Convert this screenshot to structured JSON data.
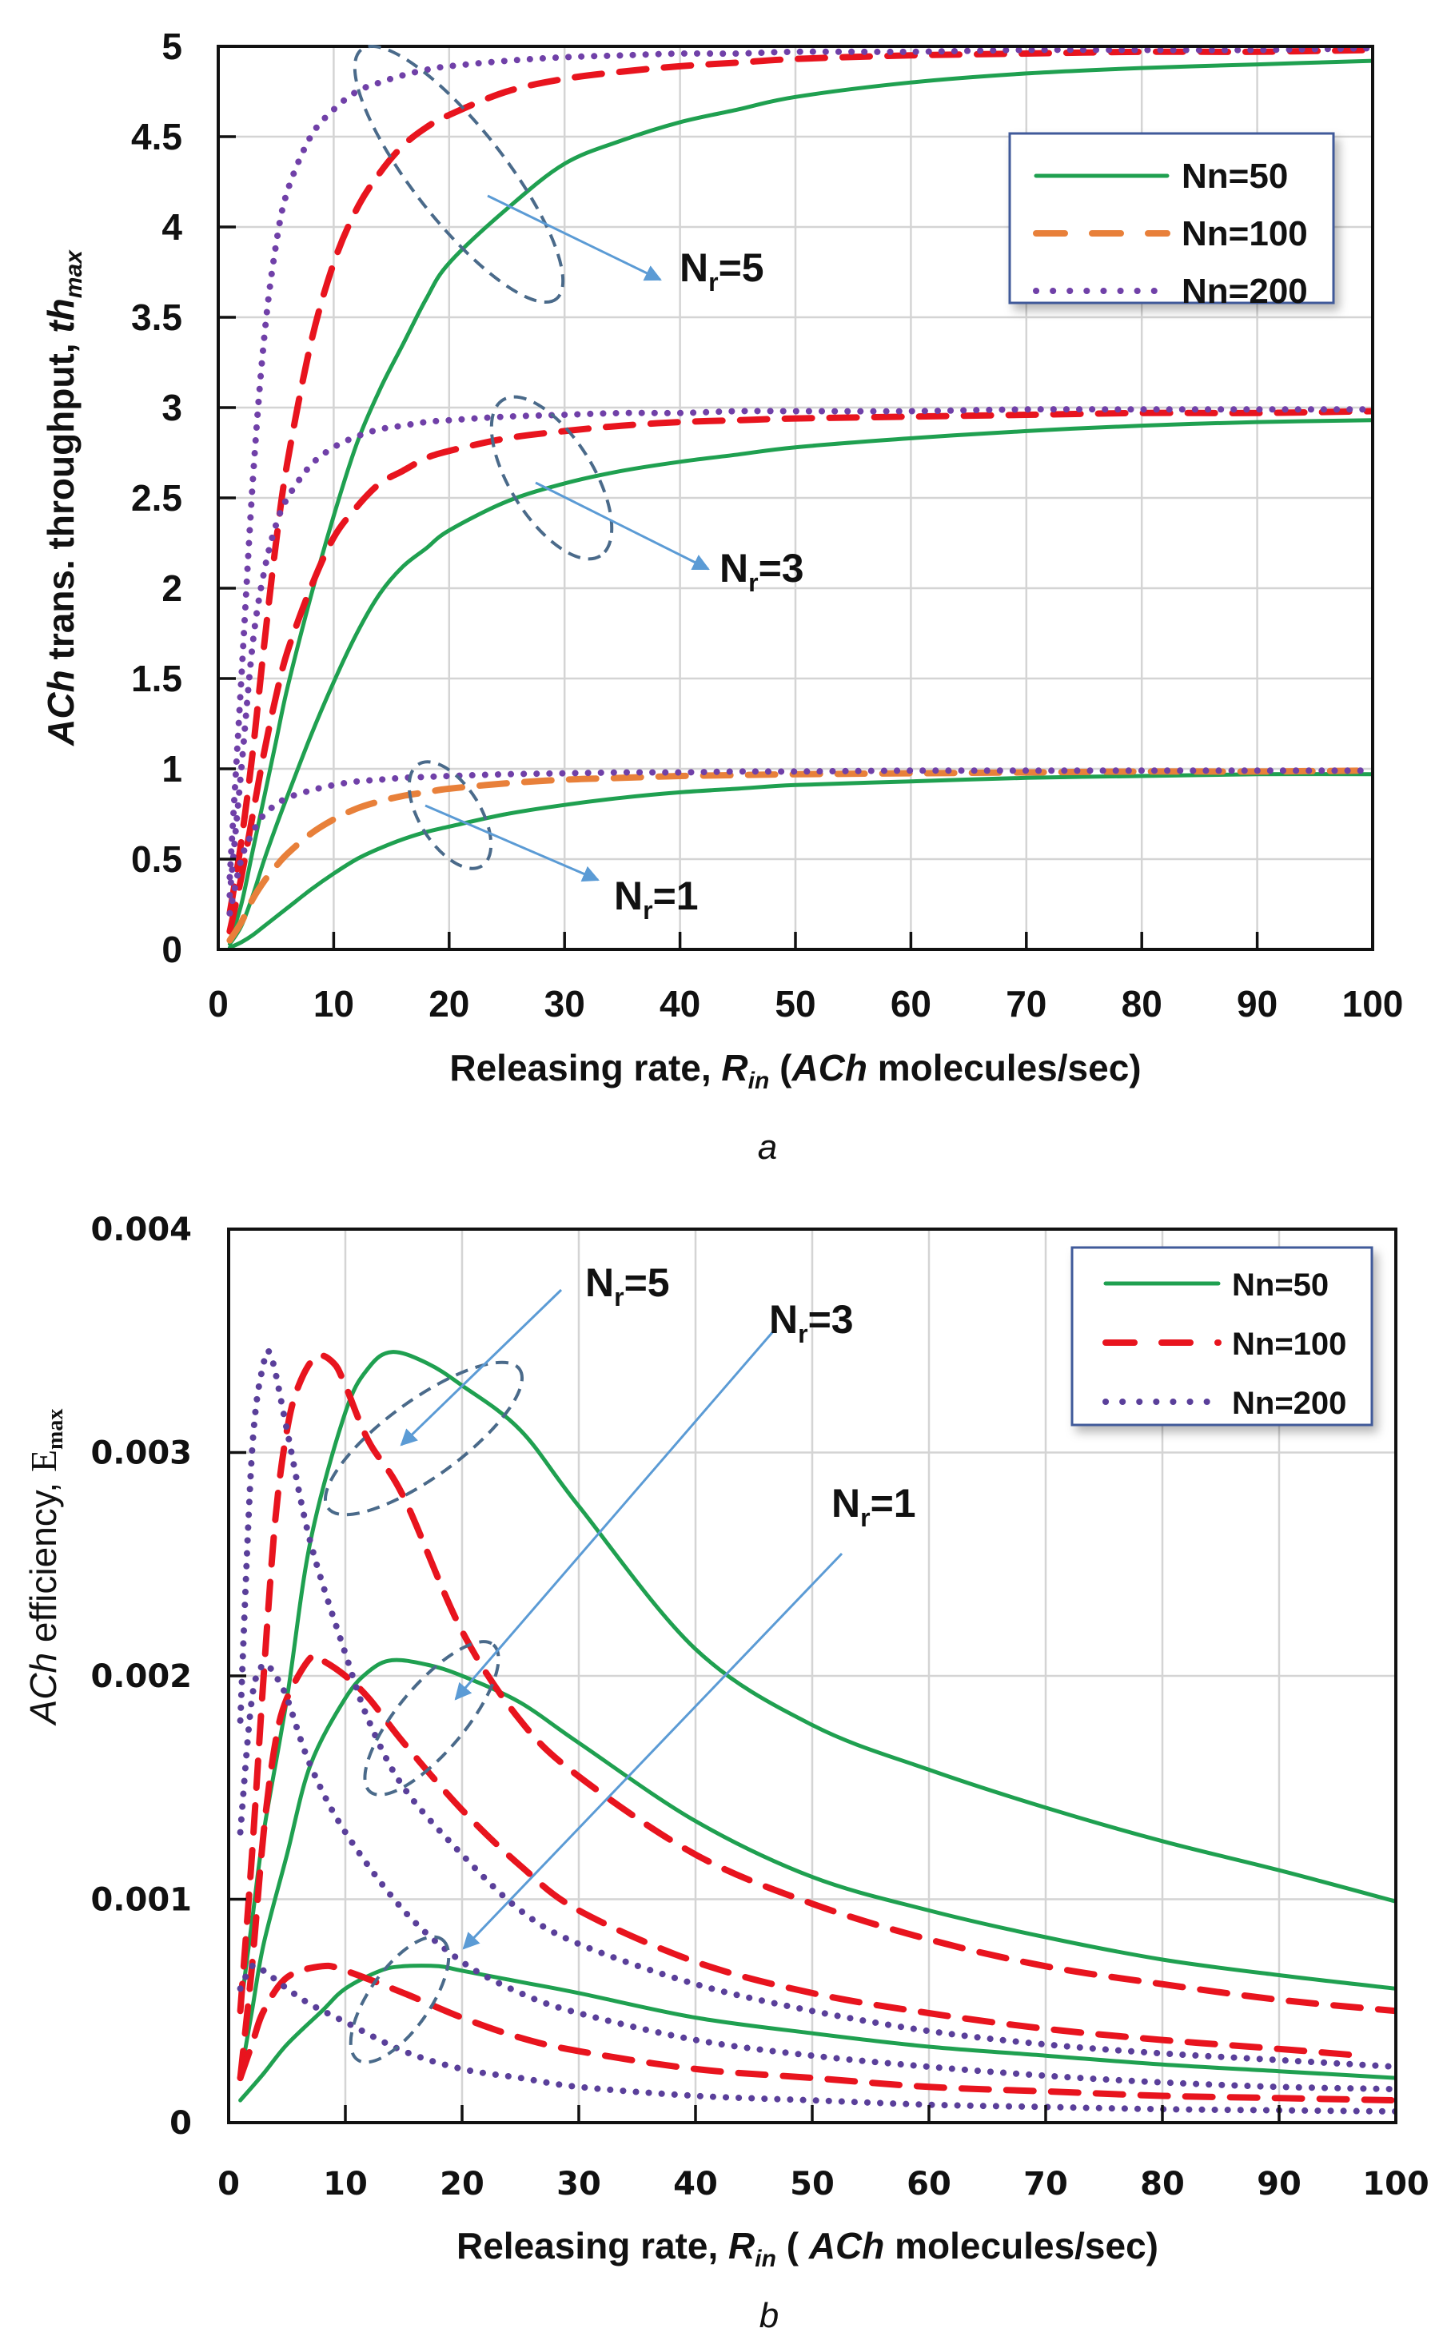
{
  "chart_data": [
    {
      "id": "a",
      "type": "line",
      "caption": "a",
      "title": "",
      "xlabel": {
        "main": "Releasing rate, ",
        "var": "R",
        "sub": "in",
        "rest_open": " (",
        "italic": "ACh",
        "rest": " molecules/sec)"
      },
      "ylabel": {
        "italic": "ACh",
        "main": " trans. throughput, ",
        "var": "th",
        "sub": "max"
      },
      "xlim": [
        0,
        100
      ],
      "ylim": [
        0,
        5
      ],
      "x_ticks": [
        0,
        10,
        20,
        30,
        40,
        50,
        60,
        70,
        80,
        90,
        100
      ],
      "x_tick_labels": [
        "0",
        "10",
        "20",
        "30",
        "40",
        "50",
        "60",
        "70",
        "80",
        "90",
        "100"
      ],
      "y_ticks": [
        0,
        0.5,
        1,
        1.5,
        2,
        2.5,
        3,
        3.5,
        4,
        4.5,
        5
      ],
      "y_tick_labels": [
        "0",
        "0.5",
        "1",
        "1.5",
        "2",
        "2.5",
        "3",
        "3.5",
        "4",
        "4.5",
        "5"
      ],
      "grid": true,
      "legend_position": "top-right",
      "legend": [
        {
          "label": "Nn=50",
          "style": "solid",
          "color": "#1fa050"
        },
        {
          "label": "Nn=100",
          "style": "dashed",
          "color": "#e8803a"
        },
        {
          "label": "Nn=200",
          "style": "dotted",
          "color": "#7040a8"
        }
      ],
      "x": [
        1,
        2,
        3,
        4,
        5,
        6,
        8,
        10,
        12,
        14,
        16,
        18,
        20,
        25,
        30,
        35,
        40,
        45,
        50,
        60,
        70,
        80,
        90,
        100
      ],
      "series": [
        {
          "name": "Nn=50, Nr=5",
          "nn": 50,
          "nr": 5,
          "style": "solid",
          "color": "#1fa050",
          "values": [
            0.05,
            0.25,
            0.55,
            0.85,
            1.15,
            1.45,
            1.95,
            2.4,
            2.8,
            3.1,
            3.35,
            3.6,
            3.8,
            4.1,
            4.35,
            4.48,
            4.58,
            4.65,
            4.72,
            4.8,
            4.85,
            4.88,
            4.9,
            4.92
          ]
        },
        {
          "name": "Nn=50, Nr=3",
          "nn": 50,
          "nr": 3,
          "style": "solid",
          "color": "#1fa050",
          "values": [
            0.03,
            0.13,
            0.3,
            0.5,
            0.68,
            0.85,
            1.18,
            1.48,
            1.75,
            1.97,
            2.12,
            2.22,
            2.32,
            2.48,
            2.58,
            2.65,
            2.7,
            2.74,
            2.78,
            2.83,
            2.87,
            2.9,
            2.92,
            2.93
          ]
        },
        {
          "name": "Nn=50, Nr=1",
          "nn": 50,
          "nr": 1,
          "style": "solid",
          "color": "#1fa050",
          "values": [
            0.01,
            0.04,
            0.08,
            0.13,
            0.18,
            0.23,
            0.33,
            0.42,
            0.5,
            0.56,
            0.61,
            0.65,
            0.68,
            0.75,
            0.8,
            0.84,
            0.87,
            0.89,
            0.91,
            0.93,
            0.95,
            0.96,
            0.97,
            0.97
          ]
        },
        {
          "name": "Nn=100, Nr=5",
          "nn": 100,
          "nr": 5,
          "style": "dashed",
          "color": "#e8141e",
          "values": [
            0.2,
            0.6,
            1.1,
            1.7,
            2.25,
            2.7,
            3.35,
            3.8,
            4.1,
            4.3,
            4.45,
            4.55,
            4.62,
            4.75,
            4.82,
            4.86,
            4.89,
            4.91,
            4.93,
            4.95,
            4.96,
            4.97,
            4.97,
            4.98
          ]
        },
        {
          "name": "Nn=100, Nr=3",
          "nn": 100,
          "nr": 3,
          "style": "dashed",
          "color": "#e8141e",
          "values": [
            0.1,
            0.4,
            0.75,
            1.1,
            1.4,
            1.65,
            2.0,
            2.28,
            2.45,
            2.58,
            2.65,
            2.72,
            2.76,
            2.83,
            2.87,
            2.9,
            2.92,
            2.93,
            2.94,
            2.95,
            2.96,
            2.97,
            2.97,
            2.98
          ]
        },
        {
          "name": "Nn=100, Nr=1",
          "nn": 100,
          "nr": 1,
          "style": "dashed",
          "color": "#e8803a",
          "values": [
            0.05,
            0.15,
            0.28,
            0.38,
            0.46,
            0.53,
            0.64,
            0.72,
            0.78,
            0.82,
            0.85,
            0.87,
            0.89,
            0.92,
            0.94,
            0.95,
            0.96,
            0.965,
            0.97,
            0.975,
            0.98,
            0.985,
            0.985,
            0.99
          ]
        },
        {
          "name": "Nn=200, Nr=5",
          "nn": 200,
          "nr": 5,
          "style": "dotted",
          "color": "#7040a8",
          "values": [
            0.4,
            1.5,
            2.6,
            3.4,
            3.9,
            4.2,
            4.5,
            4.65,
            4.75,
            4.8,
            4.84,
            4.87,
            4.89,
            4.92,
            4.94,
            4.95,
            4.96,
            4.96,
            4.97,
            4.97,
            4.98,
            4.98,
            4.98,
            4.99
          ]
        },
        {
          "name": "Nn=200, Nr=3",
          "nn": 200,
          "nr": 3,
          "style": "dotted",
          "color": "#7040a8",
          "values": [
            0.3,
            1.0,
            1.7,
            2.1,
            2.35,
            2.5,
            2.68,
            2.78,
            2.84,
            2.88,
            2.9,
            2.92,
            2.93,
            2.95,
            2.96,
            2.97,
            2.97,
            2.98,
            2.98,
            2.98,
            2.99,
            2.99,
            2.99,
            2.99
          ]
        },
        {
          "name": "Nn=200, Nr=1",
          "nn": 200,
          "nr": 1,
          "style": "dotted",
          "color": "#7040a8",
          "values": [
            0.2,
            0.5,
            0.65,
            0.75,
            0.8,
            0.84,
            0.88,
            0.91,
            0.93,
            0.94,
            0.95,
            0.955,
            0.96,
            0.97,
            0.975,
            0.98,
            0.98,
            0.985,
            0.985,
            0.99,
            0.99,
            0.99,
            0.99,
            0.99
          ]
        }
      ],
      "annotations": [
        {
          "label_main": "N",
          "label_sub": "r",
          "label_rest": "=5",
          "group": "Nr=5"
        },
        {
          "label_main": "N",
          "label_sub": "r",
          "label_rest": "=3",
          "group": "Nr=3"
        },
        {
          "label_main": "N",
          "label_sub": "r",
          "label_rest": "=1",
          "group": "Nr=1"
        }
      ]
    },
    {
      "id": "b",
      "type": "line",
      "caption": "b",
      "title": "",
      "xlabel": {
        "main": "Releasing rate, ",
        "var": "R",
        "sub": "in",
        "rest_open": " ( ",
        "italic": "ACh",
        "rest": " molecules/sec)"
      },
      "ylabel": {
        "italic": "ACh",
        "main": " efficiency, ",
        "var": "E",
        "sub": "max"
      },
      "xlim": [
        0,
        100
      ],
      "ylim": [
        0,
        0.004
      ],
      "x_ticks": [
        0,
        10,
        20,
        30,
        40,
        50,
        60,
        70,
        80,
        90,
        100
      ],
      "x_tick_labels": [
        "0",
        "10",
        "20",
        "30",
        "40",
        "50",
        "60",
        "70",
        "80",
        "90",
        "100"
      ],
      "y_ticks": [
        0,
        0.001,
        0.002,
        0.003,
        0.004
      ],
      "y_tick_labels": [
        "0",
        "0.001",
        "0.002",
        "0.003",
        "0.004"
      ],
      "grid": true,
      "legend_position": "top-right",
      "legend": [
        {
          "label": "Nn=50",
          "style": "solid",
          "color": "#1fa050"
        },
        {
          "label": "Nn=100",
          "style": "dashed",
          "color": "#e8141e"
        },
        {
          "label": "Nn=200",
          "style": "dotted",
          "color": "#5a3f9a"
        }
      ],
      "series": [
        {
          "name": "Nn=50, Nr=5",
          "nn": 50,
          "nr": 5,
          "style": "solid",
          "color": "#1fa050",
          "x": [
            1,
            2,
            3,
            5,
            7,
            10,
            12,
            14,
            17,
            20,
            25,
            30,
            40,
            50,
            60,
            70,
            80,
            90,
            100
          ],
          "values": [
            0.0005,
            0.0009,
            0.0013,
            0.0019,
            0.0026,
            0.00318,
            0.00338,
            0.00345,
            0.0034,
            0.0033,
            0.0031,
            0.00276,
            0.00212,
            0.00178,
            0.00158,
            0.00141,
            0.00126,
            0.00113,
            0.00099
          ]
        },
        {
          "name": "Nn=50, Nr=3",
          "nn": 50,
          "nr": 3,
          "style": "solid",
          "color": "#1fa050",
          "x": [
            1,
            2,
            3,
            5,
            7,
            10,
            12,
            14,
            17,
            20,
            25,
            30,
            40,
            50,
            60,
            70,
            80,
            90,
            100
          ],
          "values": [
            0.0002,
            0.0005,
            0.0008,
            0.0012,
            0.0016,
            0.0019,
            0.00202,
            0.00207,
            0.00205,
            0.002,
            0.00188,
            0.0017,
            0.00135,
            0.0011,
            0.00095,
            0.00083,
            0.00073,
            0.00066,
            0.0006
          ]
        },
        {
          "name": "Nn=50, Nr=1",
          "nn": 50,
          "nr": 1,
          "style": "solid",
          "color": "#1fa050",
          "x": [
            1,
            3,
            5,
            8,
            10,
            13,
            15,
            18,
            20,
            25,
            30,
            40,
            50,
            60,
            70,
            80,
            90,
            100
          ],
          "values": [
            0.0001,
            0.00022,
            0.00035,
            0.0005,
            0.0006,
            0.00068,
            0.0007,
            0.0007,
            0.00068,
            0.00063,
            0.00058,
            0.00047,
            0.0004,
            0.00034,
            0.0003,
            0.00026,
            0.00023,
            0.0002
          ]
        },
        {
          "name": "Nn=100, Nr=5",
          "nn": 100,
          "nr": 5,
          "style": "dashed",
          "color": "#e8141e",
          "x": [
            1,
            2,
            3,
            4,
            5,
            6,
            7.5,
            9,
            10,
            12,
            15,
            20,
            25,
            30,
            40,
            50,
            60,
            70,
            80,
            90,
            100
          ],
          "values": [
            0.0005,
            0.0012,
            0.002,
            0.0027,
            0.0031,
            0.0033,
            0.00343,
            0.0034,
            0.0033,
            0.00305,
            0.0028,
            0.0022,
            0.0018,
            0.00155,
            0.0012,
            0.00098,
            0.00082,
            0.0007,
            0.00062,
            0.00055,
            0.0005
          ]
        },
        {
          "name": "Nn=100, Nr=3",
          "nn": 100,
          "nr": 3,
          "style": "dashed",
          "color": "#e8141e",
          "x": [
            1,
            2,
            3,
            4,
            5,
            7,
            8,
            10,
            12,
            15,
            20,
            25,
            30,
            40,
            50,
            60,
            70,
            80,
            90,
            97
          ],
          "values": [
            0.0002,
            0.0007,
            0.0013,
            0.0017,
            0.0019,
            0.00208,
            0.00207,
            0.002,
            0.0019,
            0.0017,
            0.0014,
            0.00115,
            0.00095,
            0.00072,
            0.00058,
            0.00049,
            0.00042,
            0.00037,
            0.00033,
            0.0003
          ]
        },
        {
          "name": "Nn=100, Nr=1",
          "nn": 100,
          "nr": 1,
          "style": "dashed",
          "color": "#e8141e",
          "x": [
            1,
            2,
            3,
            5,
            8,
            10,
            15,
            20,
            25,
            30,
            40,
            50,
            60,
            70,
            80,
            90,
            100
          ],
          "values": [
            0.0002,
            0.00035,
            0.0005,
            0.00065,
            0.0007,
            0.00068,
            0.00058,
            0.00047,
            0.00038,
            0.00032,
            0.00024,
            0.0002,
            0.00016,
            0.00014,
            0.00012,
            0.00011,
            0.0001
          ]
        },
        {
          "name": "Nn=200, Nr=5",
          "nn": 200,
          "nr": 5,
          "style": "dotted",
          "color": "#5a3f9a",
          "x": [
            1,
            2,
            3,
            3.7,
            5,
            7,
            10,
            12,
            15,
            20,
            25,
            30,
            40,
            50,
            60,
            70,
            80,
            90,
            100
          ],
          "values": [
            0.0018,
            0.003,
            0.0034,
            0.00342,
            0.0031,
            0.0026,
            0.0021,
            0.0018,
            0.0015,
            0.0012,
            0.00095,
            0.0008,
            0.00062,
            0.0005,
            0.00041,
            0.00035,
            0.00031,
            0.00028,
            0.00025
          ]
        },
        {
          "name": "Nn=200, Nr=3",
          "nn": 200,
          "nr": 3,
          "style": "dotted",
          "color": "#5a3f9a",
          "x": [
            1,
            2,
            3,
            4,
            5,
            7,
            10,
            15,
            20,
            25,
            30,
            40,
            50,
            60,
            70,
            80,
            90,
            100
          ],
          "values": [
            0.0013,
            0.0019,
            0.00205,
            0.002,
            0.0019,
            0.0016,
            0.0013,
            0.00095,
            0.00072,
            0.00058,
            0.00049,
            0.00037,
            0.0003,
            0.00025,
            0.00021,
            0.00018,
            0.00016,
            0.00015
          ]
        },
        {
          "name": "Nn=200, Nr=1",
          "nn": 200,
          "nr": 1,
          "style": "dotted",
          "color": "#5a3f9a",
          "x": [
            1,
            2,
            3,
            5,
            7,
            10,
            15,
            20,
            25,
            30,
            40,
            50,
            60,
            70,
            80,
            90,
            100
          ],
          "values": [
            0.0006,
            0.0007,
            0.00068,
            0.0006,
            0.00053,
            0.00045,
            0.00032,
            0.00024,
            0.0002,
            0.00016,
            0.00012,
            0.0001,
            8e-05,
            7e-05,
            6e-05,
            5.5e-05,
            5e-05
          ]
        }
      ],
      "annotations": [
        {
          "label_main": "N",
          "label_sub": "r",
          "label_rest": "=5",
          "group": "Nr=5"
        },
        {
          "label_main": "N",
          "label_sub": "r",
          "label_rest": "=3",
          "group": "Nr=3"
        },
        {
          "label_main": "N",
          "label_sub": "r",
          "label_rest": "=1",
          "group": "Nr=1"
        }
      ]
    }
  ],
  "colors": {
    "annotation_ellipse": "#4a6a8a",
    "annotation_arrow": "#5b9bd5",
    "legend_border": "#3f5a9a",
    "gridline": "#d4d4d4"
  }
}
